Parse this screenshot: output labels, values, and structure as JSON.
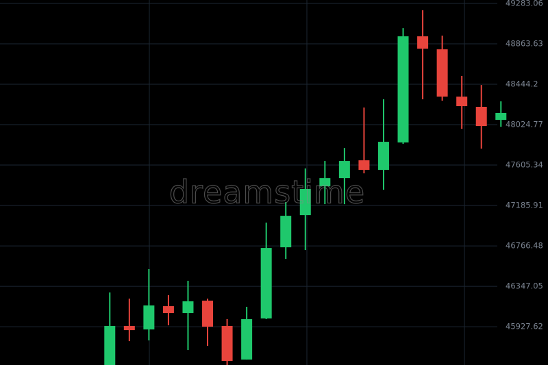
{
  "chart_data": {
    "type": "candlestick",
    "categories": [
      null,
      null,
      null,
      null,
      null,
      null,
      null,
      null,
      null,
      null,
      null,
      null,
      null,
      null,
      null,
      null,
      null,
      null,
      null,
      null,
      null
    ],
    "open": [
      45480,
      45935,
      45899,
      46141,
      46070,
      46198,
      45935,
      45586,
      46013,
      46752,
      47086,
      47385,
      47470,
      47655,
      47556,
      47840,
      48942,
      48807,
      48316,
      48210,
      48075
    ],
    "high": [
      46283,
      46219,
      46525,
      46255,
      46404,
      46219,
      46006,
      46134,
      47008,
      47221,
      47570,
      47648,
      47783,
      48203,
      48288,
      49027,
      49212,
      48949,
      48530,
      48437,
      48267
    ],
    "low": [
      45444,
      45778,
      45785,
      45942,
      45686,
      45729,
      45480,
      45586,
      46006,
      46631,
      46724,
      47200,
      47200,
      47520,
      47349,
      47826,
      48288,
      48274,
      47982,
      47776,
      48003
    ],
    "close": [
      45935,
      45892,
      46148,
      46070,
      46191,
      45928,
      45572,
      46006,
      46745,
      47079,
      47357,
      47470,
      47648,
      47556,
      47847,
      48942,
      48814,
      48316,
      48217,
      48011,
      48146
    ],
    "up_color": "#1fc86c",
    "down_color": "#e8443c",
    "ylim": [
      45530,
      49319
    ],
    "yticks": [
      45927.62,
      46347.05,
      46766.48,
      47185.91,
      47605.34,
      48024.77,
      48444.2,
      48863.63,
      49283.06
    ],
    "grid": true,
    "watermark": "dreamstime"
  }
}
